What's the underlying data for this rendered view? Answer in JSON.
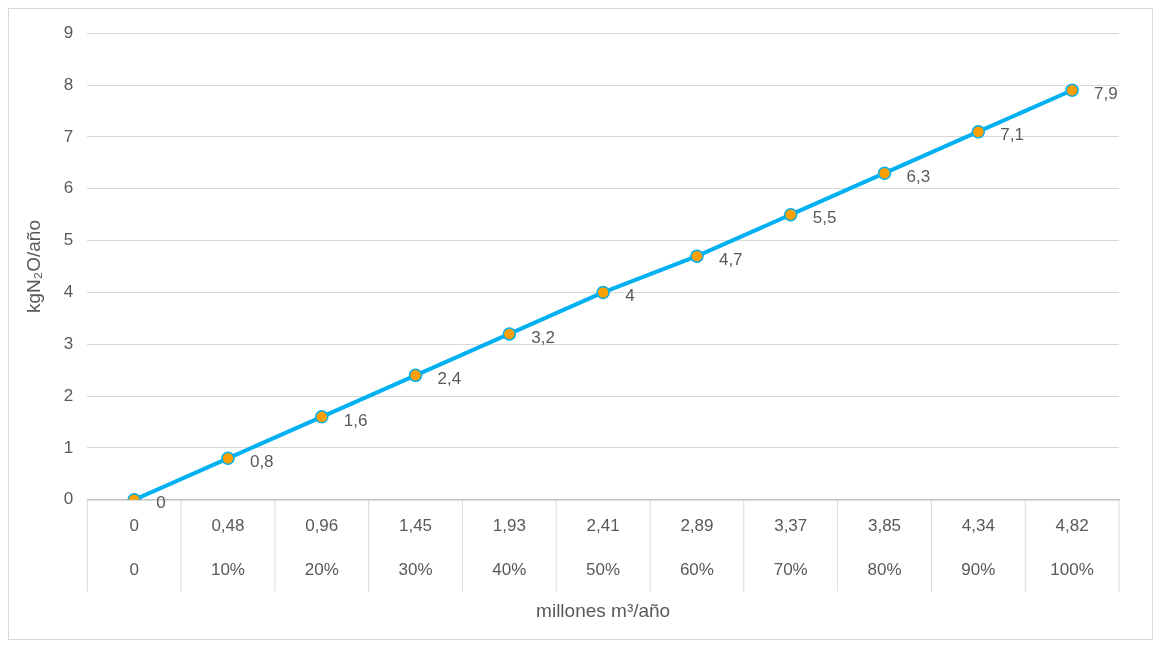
{
  "chart_data": {
    "type": "line",
    "xlabel": "millones m³/año",
    "ylabel": "kgN₂O/año",
    "categories": [
      "0\n0",
      "0,48\n10%",
      "0,96\n20%",
      "1,45\n30%",
      "1,93\n40%",
      "2,41\n50%",
      "2,89\n60%",
      "3,37\n70%",
      "3,85\n80%",
      "4,34\n90%",
      "4,82\n100%"
    ],
    "series": [
      {
        "color": "#00b0f0",
        "values": [
          0,
          0.8,
          1.6,
          2.4,
          3.2,
          4,
          4.7,
          5.5,
          6.3,
          7.1,
          7.9
        ],
        "value_labels": [
          "0",
          "0,8",
          "1,6",
          "2,4",
          "3,2",
          "4",
          "4,7",
          "5,5",
          "6,3",
          "7,1",
          "7,9"
        ]
      }
    ],
    "ylim": [
      0,
      9
    ],
    "yticks": [
      0,
      1,
      2,
      3,
      4,
      5,
      6,
      7,
      8,
      9
    ],
    "grid": "y",
    "legend": false,
    "marker": "circle",
    "line_style": "solid"
  }
}
